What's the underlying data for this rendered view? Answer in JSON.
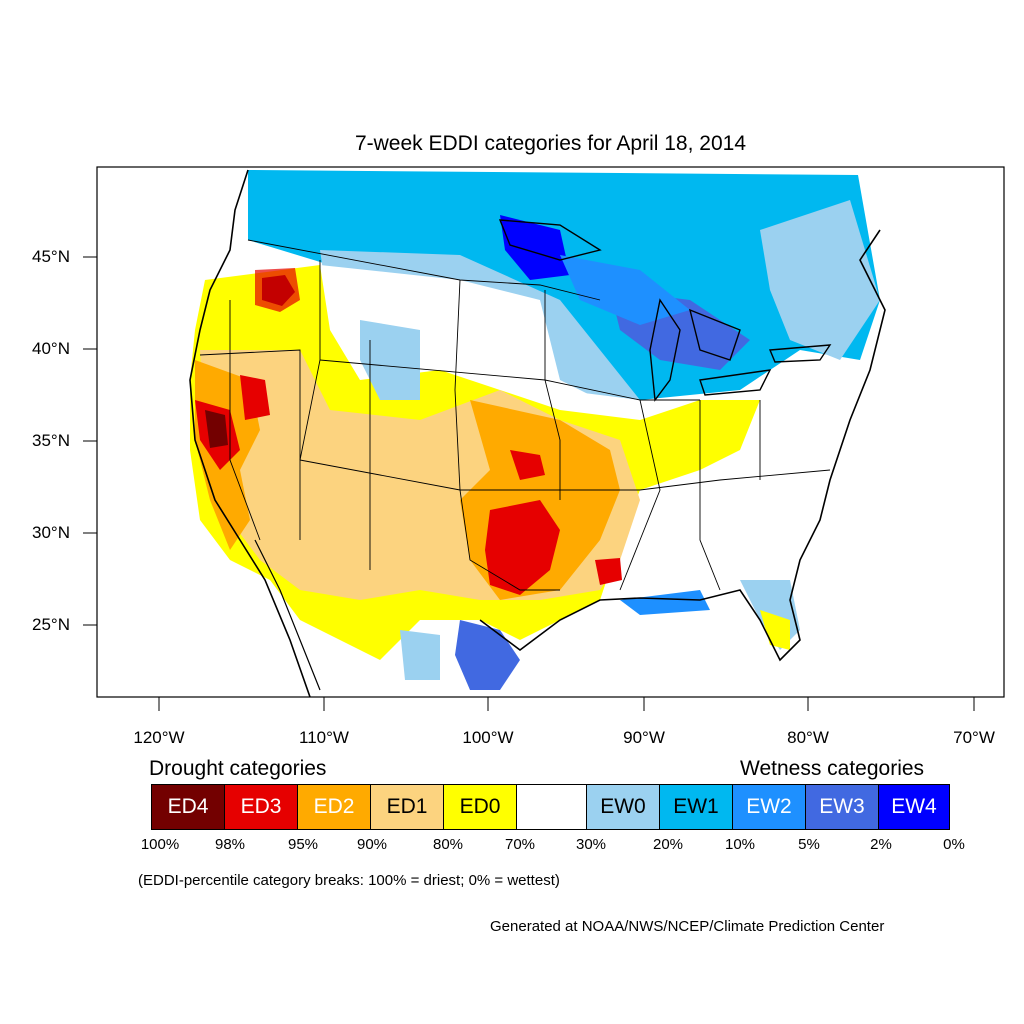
{
  "title": "7-week EDDI categories for April 18, 2014",
  "lat_labels": [
    "45°N",
    "40°N",
    "35°N",
    "30°N",
    "25°N"
  ],
  "lon_labels": [
    "120°W",
    "110°W",
    "100°W",
    "90°W",
    "80°W",
    "70°W"
  ],
  "legend": {
    "drought_heading": "Drought categories",
    "wetness_heading": "Wetness categories",
    "categories": [
      {
        "label": "ED4",
        "color": "#730000",
        "text_color": "#ffffff"
      },
      {
        "label": "ED3",
        "color": "#e60000",
        "text_color": "#ffffff"
      },
      {
        "label": "ED2",
        "color": "#ffaa00",
        "text_color": "#ffffff"
      },
      {
        "label": "ED1",
        "color": "#fcd37f",
        "text_color": "#000000"
      },
      {
        "label": "ED0",
        "color": "#ffff00",
        "text_color": "#000000"
      },
      {
        "label": "",
        "color": "#ffffff",
        "text_color": "#000000"
      },
      {
        "label": "EW0",
        "color": "#9bd1f0",
        "text_color": "#000000"
      },
      {
        "label": "EW1",
        "color": "#00b8f0",
        "text_color": "#000000"
      },
      {
        "label": "EW2",
        "color": "#1e90ff",
        "text_color": "#ffffff"
      },
      {
        "label": "EW3",
        "color": "#4169e1",
        "text_color": "#ffffff"
      },
      {
        "label": "EW4",
        "color": "#0000ff",
        "text_color": "#ffffff"
      }
    ],
    "percentiles": [
      "100%",
      "98%",
      "95%",
      "90%",
      "80%",
      "70%",
      "30%",
      "20%",
      "10%",
      "5%",
      "2%",
      "0%"
    ]
  },
  "breaks_note": "(EDDI-percentile category breaks: 100% = driest; 0% = wettest)",
  "credit": "Generated at NOAA/NWS/NCEP/Climate Prediction Center"
}
